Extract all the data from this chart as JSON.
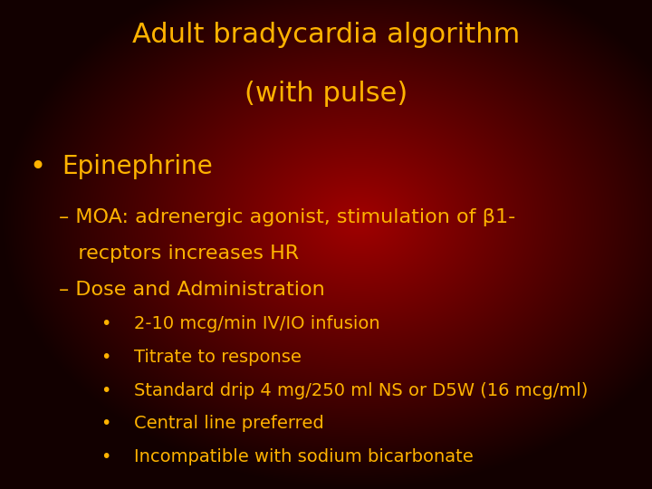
{
  "title_line1": "Adult bradycardia algorithm",
  "title_line2": "(with pulse)",
  "title_color": "#FFB300",
  "text_color": "#FFB300",
  "bullet1": "Epinephrine",
  "dash1_line1": "– MOA: adrenergic agonist, stimulation of β1-",
  "dash1_line2": "   recptors increases HR",
  "dash2": "– Dose and Administration",
  "sub_bullets": [
    "2-10 mcg/min IV/IO infusion",
    "Titrate to response",
    "Standard drip 4 mg/250 ml NS or D5W (16 mcg/ml)",
    "Central line preferred",
    "Incompatible with sodium bicarbonate"
  ],
  "title_fontsize": 22,
  "bullet1_fontsize": 20,
  "dash_fontsize": 16,
  "sub_fontsize": 14
}
